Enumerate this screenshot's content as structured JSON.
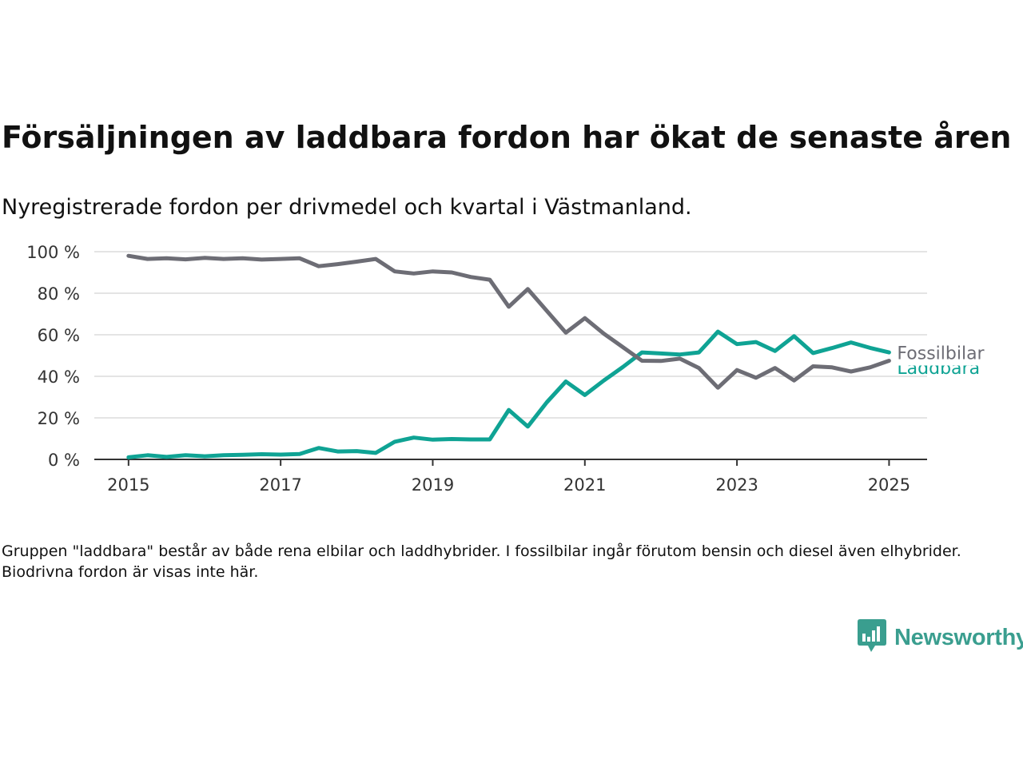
{
  "title": "Försäljningen av laddbara fordon har ökat de senaste åren",
  "subtitle": "Nyregistrerade fordon per drivmedel och kvartal i Västmanland.",
  "note": "Gruppen \"laddbara\" består av både rena elbilar och laddhybrider. I fossilbilar ingår förutom bensin och diesel även elhybrider. Biodrivna fordon är visas inte här.",
  "brand": {
    "name": "Newsworthy",
    "color": "#3a9e8f",
    "icon": "newsworthy-logo-icon"
  },
  "colors": {
    "gridline": "#dcdcdc",
    "axis": "#333333",
    "fossil": "#6d6d75",
    "laddbara": "#0fa394"
  },
  "chart_data": {
    "type": "line",
    "x_axis": {
      "ticks": [
        2015,
        2017,
        2019,
        2021,
        2023,
        2025
      ],
      "range": [
        2014.55,
        2025.5
      ]
    },
    "y_axis": {
      "ticks": [
        0,
        20,
        40,
        60,
        80,
        100
      ],
      "tick_labels": [
        "0 %",
        "20 %",
        "40 %",
        "60 %",
        "80 %",
        "100 %"
      ],
      "range": [
        0,
        100
      ]
    },
    "grid": "horizontal",
    "legend": "inline labels at line ends (right)",
    "x": [
      2015.0,
      2015.25,
      2015.5,
      2015.75,
      2016.0,
      2016.25,
      2016.5,
      2016.75,
      2017.0,
      2017.25,
      2017.5,
      2017.75,
      2018.0,
      2018.25,
      2018.5,
      2018.75,
      2019.0,
      2019.25,
      2019.5,
      2019.75,
      2020.0,
      2020.25,
      2020.5,
      2020.75,
      2021.0,
      2021.25,
      2021.5,
      2021.75,
      2022.0,
      2022.25,
      2022.5,
      2022.75,
      2023.0,
      2023.25,
      2023.5,
      2023.75,
      2024.0,
      2024.25,
      2024.5,
      2024.75,
      2025.0
    ],
    "series": [
      {
        "name": "Fossilbilar",
        "color": "#6d6d75",
        "values": [
          98,
          96.5,
          96.8,
          96.3,
          97,
          96.5,
          96.8,
          96.2,
          96.5,
          96.8,
          93,
          94,
          95.2,
          96.5,
          90.5,
          89.5,
          90.5,
          90,
          87.8,
          86.5,
          73.5,
          82,
          71.5,
          61,
          68,
          60.5,
          54,
          47.5,
          47.4,
          48.5,
          44,
          34.5,
          43,
          39.3,
          44,
          38,
          44.8,
          44.3,
          42.3,
          44.3,
          47.5
        ]
      },
      {
        "name": "Laddbara",
        "color": "#0fa394",
        "values": [
          1,
          2,
          1.2,
          2,
          1.5,
          2,
          2.2,
          2.5,
          2.3,
          2.6,
          5.5,
          3.8,
          4,
          3.1,
          8.5,
          10.5,
          9.5,
          9.8,
          9.6,
          9.6,
          23.8,
          15.8,
          27.5,
          37.5,
          31,
          38,
          44.5,
          51.5,
          51,
          50.5,
          51.5,
          61.5,
          55.5,
          56.5,
          52.2,
          59.3,
          51.2,
          53.6,
          56.3,
          53.7,
          51.5
        ]
      }
    ]
  }
}
